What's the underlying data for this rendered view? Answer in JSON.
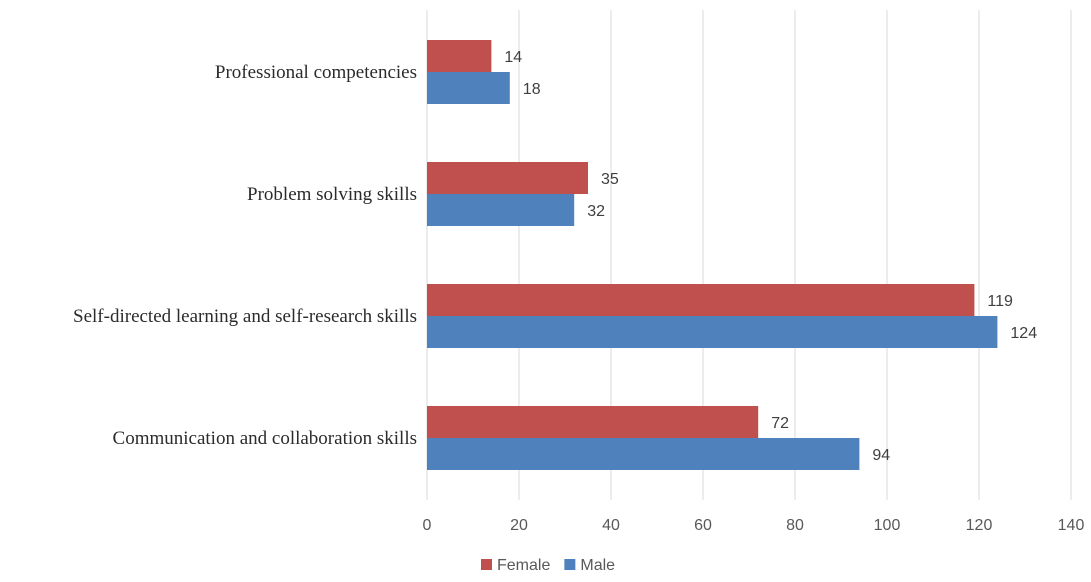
{
  "chart_data": {
    "type": "bar",
    "orientation": "horizontal",
    "categories": [
      "Professional competencies",
      "Problem solving skills",
      "Self-directed learning and self-research skills",
      "Communication and collaboration skills"
    ],
    "series": [
      {
        "name": "Female",
        "color": "#c0504d",
        "values": [
          14,
          35,
          119,
          72
        ]
      },
      {
        "name": "Male",
        "color": "#4f81bd",
        "values": [
          18,
          32,
          124,
          94
        ]
      }
    ],
    "xlim": [
      0,
      140
    ],
    "x_ticks": [
      0,
      20,
      40,
      60,
      80,
      100,
      120,
      140
    ],
    "grid": true,
    "legend_position": "bottom",
    "data_labels": true
  }
}
